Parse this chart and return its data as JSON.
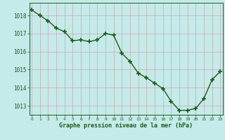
{
  "x": [
    0,
    1,
    2,
    3,
    4,
    5,
    6,
    7,
    8,
    9,
    10,
    11,
    12,
    13,
    14,
    15,
    16,
    17,
    18,
    19,
    20,
    21,
    22,
    23
  ],
  "y": [
    1018.3,
    1018.0,
    1017.7,
    1017.3,
    1017.1,
    1016.6,
    1016.65,
    1016.55,
    1016.65,
    1017.0,
    1016.9,
    1015.9,
    1015.45,
    1014.8,
    1014.55,
    1014.25,
    1013.95,
    1013.25,
    1012.75,
    1012.75,
    1012.85,
    1013.4,
    1014.45,
    1014.9
  ],
  "line_color": "#1a5c1a",
  "marker_color": "#1a5c1a",
  "bg_color": "#c5eaea",
  "grid_color": "#c8a8a8",
  "xlabel": "Graphe pression niveau de la mer (hPa)",
  "xlabel_color": "#1a5c1a",
  "tick_color": "#1a5c1a",
  "ylim": [
    1012.5,
    1018.7
  ],
  "yticks": [
    1013,
    1014,
    1015,
    1016,
    1017,
    1018
  ],
  "xticks": [
    0,
    1,
    2,
    3,
    4,
    5,
    6,
    7,
    8,
    9,
    10,
    11,
    12,
    13,
    14,
    15,
    16,
    17,
    18,
    19,
    20,
    21,
    22,
    23
  ],
  "marker_size": 4.0,
  "line_width": 1.0
}
